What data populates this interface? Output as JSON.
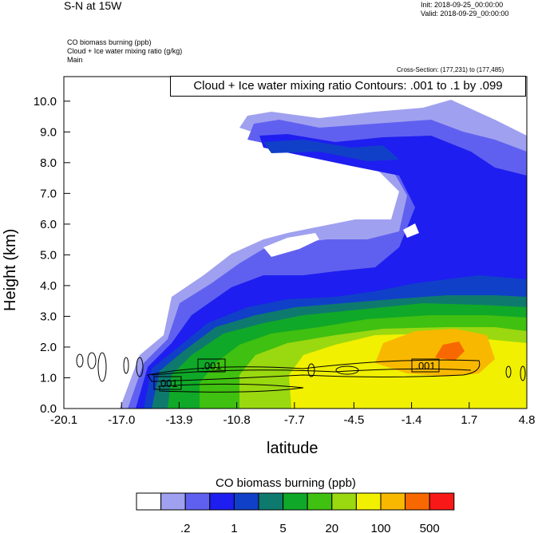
{
  "header": {
    "title_left": "S-N at 15W",
    "init": "Init: 2018-09-25_00:00:00",
    "valid": "Valid: 2018-09-29_00:00:00",
    "fields": [
      "CO biomass burning   (ppb)",
      "Cloud + Ice water mixing ratio   (g/kg)",
      "Main"
    ],
    "cross_section": "Cross-Section: (177,231) to (177,485)"
  },
  "contour_label": "Cloud + Ice water mixing ratio Contours: .001 to .1 by .099",
  "contour_value_labels": [
    ".001",
    ".001",
    ".001"
  ],
  "colorbar": {
    "title": "CO biomass burning  (ppb)",
    "colors": [
      "#ffffff",
      "#a0a0f0",
      "#6060f0",
      "#1e1ef0",
      "#1040c8",
      "#0e7a6e",
      "#10a828",
      "#40c010",
      "#9ad810",
      "#f0f000",
      "#f8b800",
      "#f86800",
      "#f81818"
    ],
    "tick_labels": [
      ".2",
      "1",
      "5",
      "20",
      "100",
      "500"
    ]
  },
  "chart_data": {
    "type": "heatmap",
    "title": "Cloud + Ice water mixing ratio Contours: .001 to .1 by .099",
    "xlabel": "latitude",
    "ylabel": "Height (km)",
    "xlim": [
      -20.1,
      4.8
    ],
    "ylim": [
      0.0,
      10.0
    ],
    "x_ticks": [
      -20.1,
      -17.0,
      -13.9,
      -10.8,
      -7.7,
      -4.5,
      -1.4,
      1.7,
      4.8
    ],
    "x_tick_labels": [
      "-20.1",
      "-17.0",
      "-13.9",
      "-10.8",
      "-7.7",
      "-4.5",
      "-1.4",
      "1.7",
      "4.8"
    ],
    "y_ticks": [
      0.0,
      1.0,
      2.0,
      3.0,
      4.0,
      5.0,
      6.0,
      7.0,
      8.0,
      9.0,
      10.0
    ],
    "y_tick_labels": [
      "0.0",
      "1.0",
      "2.0",
      "3.0",
      "4.0",
      "5.0",
      "6.0",
      "7.0",
      "8.0",
      "9.0",
      "10.0"
    ],
    "color_levels_ppb": [
      0.2,
      0.5,
      1,
      2,
      5,
      10,
      20,
      50,
      100,
      200,
      500,
      1000
    ],
    "grid": false
  }
}
